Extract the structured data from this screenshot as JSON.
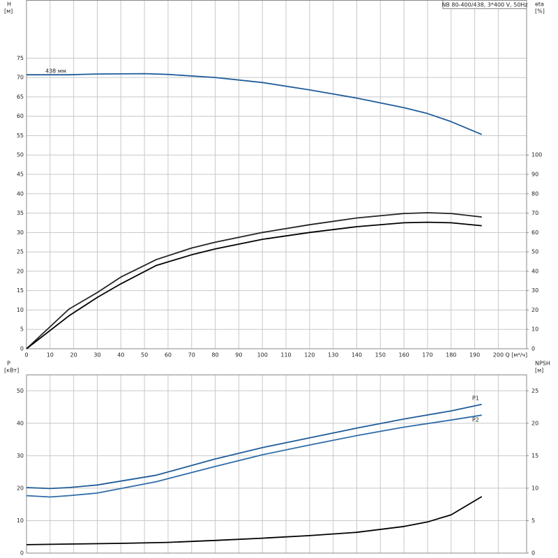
{
  "chart_data": [
    {
      "type": "line",
      "title": "NB 80-400/438, 3*400 V, 50Hz",
      "ylabel": [
        "H",
        "[м]"
      ],
      "y2label": [
        "eta",
        "[%]"
      ],
      "xlabel": "Q [м³/ч]",
      "xlim": [
        0,
        212
      ],
      "xticks": [
        0,
        10,
        20,
        30,
        40,
        50,
        60,
        70,
        80,
        90,
        100,
        110,
        120,
        130,
        140,
        150,
        160,
        170,
        180,
        190,
        200
      ],
      "ylim": [
        0,
        90
      ],
      "yticks": [
        0,
        5,
        10,
        15,
        20,
        25,
        30,
        35,
        40,
        45,
        50,
        55,
        60,
        65,
        70,
        75
      ],
      "y2lim": [
        0,
        180
      ],
      "y2ticks": [
        0,
        10,
        20,
        30,
        40,
        50,
        60,
        70,
        80,
        90,
        100
      ],
      "grid": true,
      "series": [
        {
          "name": "438 мм",
          "color": "#1f5c99",
          "x": [
            0,
            18,
            30,
            50,
            60,
            80,
            100,
            120,
            140,
            160,
            170,
            180,
            193
          ],
          "values": [
            70.7,
            70.7,
            70.9,
            71.0,
            70.8,
            70.0,
            68.7,
            66.8,
            64.7,
            62.2,
            60.7,
            58.6,
            55.3
          ]
        },
        {
          "color": "#222222",
          "axis": "y2",
          "x": [
            0,
            18,
            30,
            40,
            55,
            70,
            80,
            100,
            120,
            140,
            160,
            170,
            180,
            193
          ],
          "values": [
            0,
            20.5,
            29,
            37,
            46,
            52,
            55,
            60,
            64,
            67.5,
            69.8,
            70.2,
            69.8,
            68
          ]
        },
        {
          "color": "#000000",
          "axis": "y2",
          "x": [
            0,
            18,
            30,
            40,
            55,
            70,
            80,
            100,
            120,
            140,
            160,
            170,
            180,
            193
          ],
          "values": [
            0,
            17,
            26.5,
            33.5,
            43,
            48.5,
            51.5,
            56.5,
            60,
            63,
            65,
            65.3,
            65,
            63.5
          ]
        }
      ]
    },
    {
      "type": "line",
      "ylabel": [
        "P",
        "[кВт]"
      ],
      "y2label": [
        "NPSH",
        "[м]"
      ],
      "xlim": [
        0,
        212
      ],
      "xticks": [
        0,
        10,
        20,
        30,
        40,
        50,
        60,
        70,
        80,
        90,
        100,
        110,
        120,
        130,
        140,
        150,
        160,
        170,
        180,
        190,
        200
      ],
      "ylim": [
        0,
        55
      ],
      "yticks": [
        0,
        10,
        20,
        30,
        40,
        50
      ],
      "y2lim": [
        0,
        27.5
      ],
      "y2ticks": [
        0,
        5,
        10,
        15,
        20,
        25
      ],
      "grid": true,
      "series": [
        {
          "name": "P1",
          "color": "#1f5c99",
          "x": [
            0,
            10,
            18,
            30,
            55,
            80,
            100,
            120,
            140,
            160,
            180,
            193
          ],
          "values": [
            20.2,
            19.9,
            20.2,
            21,
            24,
            29,
            32.5,
            35.5,
            38.5,
            41.3,
            43.8,
            45.8
          ]
        },
        {
          "name": "P2",
          "color": "#2f6ca8",
          "x": [
            0,
            10,
            18,
            30,
            55,
            80,
            100,
            120,
            140,
            160,
            180,
            193
          ],
          "values": [
            17.7,
            17.3,
            17.7,
            18.5,
            22,
            26.7,
            30.3,
            33.3,
            36.2,
            38.8,
            41,
            42.5
          ]
        },
        {
          "color": "#000000",
          "axis": "y2",
          "x": [
            0,
            18,
            40,
            60,
            80,
            100,
            120,
            140,
            160,
            170,
            180,
            193
          ],
          "values": [
            1.3,
            1.4,
            1.5,
            1.65,
            1.95,
            2.3,
            2.7,
            3.2,
            4.1,
            4.8,
            5.9,
            8.7
          ]
        }
      ]
    }
  ]
}
